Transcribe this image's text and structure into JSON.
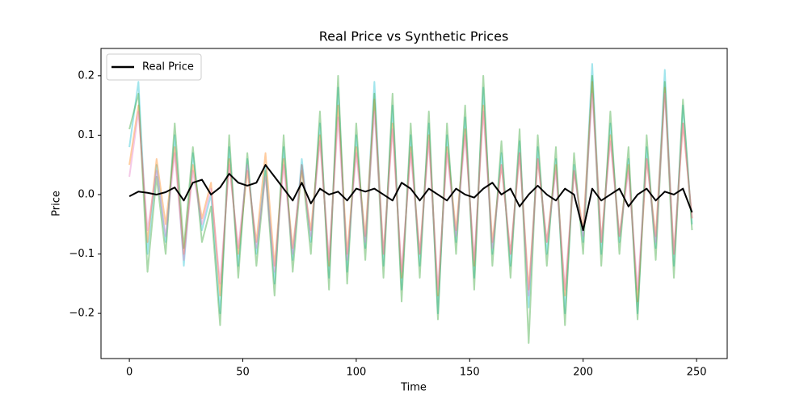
{
  "chart_data": {
    "type": "line",
    "title": "Real Price vs Synthetic Prices",
    "x_label": "Time",
    "y_label": "Price",
    "x": [
      0,
      4,
      8,
      12,
      16,
      20,
      24,
      28,
      32,
      36,
      40,
      44,
      48,
      52,
      56,
      60,
      64,
      68,
      72,
      76,
      80,
      84,
      88,
      92,
      96,
      100,
      104,
      108,
      112,
      116,
      120,
      124,
      128,
      132,
      136,
      140,
      144,
      148,
      152,
      156,
      160,
      164,
      168,
      172,
      176,
      180,
      184,
      188,
      192,
      196,
      200,
      204,
      208,
      212,
      216,
      220,
      224,
      228,
      232,
      236,
      240,
      244,
      248
    ],
    "series": [
      {
        "color": "#17becf",
        "values": [
          0.08,
          0.19,
          -0.1,
          0.05,
          -0.08,
          0.1,
          -0.12,
          0.07,
          -0.06,
          0.0,
          -0.2,
          0.08,
          -0.12,
          0.06,
          -0.1,
          0.05,
          -0.15,
          0.08,
          -0.11,
          0.06,
          -0.08,
          0.12,
          -0.14,
          0.18,
          -0.13,
          0.1,
          -0.09,
          0.19,
          -0.12,
          0.15,
          -0.16,
          0.1,
          -0.12,
          0.12,
          -0.2,
          0.1,
          -0.08,
          0.13,
          -0.14,
          0.18,
          -0.1,
          0.07,
          -0.12,
          0.09,
          -0.19,
          0.08,
          -0.1,
          0.06,
          -0.2,
          0.05,
          -0.08,
          0.22,
          -0.1,
          0.12,
          -0.08,
          0.06,
          -0.2,
          0.08,
          -0.09,
          0.21,
          -0.12,
          0.15,
          -0.05
        ]
      },
      {
        "color": "#ff7f0e",
        "values": [
          0.05,
          0.15,
          -0.08,
          0.06,
          -0.05,
          0.08,
          -0.1,
          0.05,
          -0.04,
          0.02,
          -0.17,
          0.06,
          -0.1,
          0.04,
          -0.08,
          0.07,
          -0.12,
          0.06,
          -0.09,
          0.04,
          -0.06,
          0.1,
          -0.12,
          0.15,
          -0.1,
          0.08,
          -0.07,
          0.16,
          -0.1,
          0.12,
          -0.14,
          0.08,
          -0.1,
          0.1,
          -0.17,
          0.08,
          -0.06,
          0.11,
          -0.12,
          0.15,
          -0.08,
          0.05,
          -0.1,
          0.07,
          -0.16,
          0.06,
          -0.08,
          0.05,
          -0.17,
          0.04,
          -0.06,
          0.19,
          -0.08,
          0.1,
          -0.07,
          0.05,
          -0.18,
          0.06,
          -0.07,
          0.18,
          -0.1,
          0.12,
          -0.04
        ]
      },
      {
        "color": "#2ca02c",
        "values": [
          0.11,
          0.17,
          -0.13,
          0.03,
          -0.1,
          0.12,
          -0.09,
          0.08,
          -0.08,
          -0.02,
          -0.22,
          0.1,
          -0.14,
          0.07,
          -0.12,
          0.04,
          -0.17,
          0.1,
          -0.13,
          0.05,
          -0.1,
          0.14,
          -0.16,
          0.2,
          -0.15,
          0.12,
          -0.11,
          0.17,
          -0.14,
          0.17,
          -0.18,
          0.12,
          -0.14,
          0.14,
          -0.21,
          0.12,
          -0.1,
          0.15,
          -0.16,
          0.2,
          -0.12,
          0.09,
          -0.14,
          0.11,
          -0.25,
          0.1,
          -0.12,
          0.08,
          -0.22,
          0.07,
          -0.1,
          0.2,
          -0.12,
          0.14,
          -0.1,
          0.08,
          -0.21,
          0.1,
          -0.11,
          0.19,
          -0.14,
          0.16,
          -0.06
        ]
      },
      {
        "color": "#e377c2",
        "values": [
          0.03,
          0.14,
          -0.06,
          0.04,
          -0.07,
          0.07,
          -0.11,
          0.04,
          -0.05,
          0.01,
          -0.15,
          0.05,
          -0.09,
          0.05,
          -0.09,
          0.03,
          -0.13,
          0.05,
          -0.1,
          0.05,
          -0.07,
          0.09,
          -0.11,
          0.13,
          -0.11,
          0.07,
          -0.08,
          0.14,
          -0.1,
          0.11,
          -0.13,
          0.07,
          -0.1,
          0.09,
          -0.16,
          0.07,
          -0.07,
          0.1,
          -0.11,
          0.14,
          -0.09,
          0.05,
          -0.1,
          0.07,
          -0.17,
          0.06,
          -0.08,
          0.04,
          -0.16,
          0.04,
          -0.07,
          0.17,
          -0.08,
          0.09,
          -0.07,
          0.04,
          -0.16,
          0.06,
          -0.08,
          0.17,
          -0.1,
          0.12,
          -0.04
        ]
      },
      {
        "name": "Real Price",
        "color": "#000000",
        "values": [
          -0.003,
          0.005,
          0.003,
          0.0,
          0.004,
          0.012,
          -0.01,
          0.02,
          0.025,
          0.0,
          0.012,
          0.035,
          0.02,
          0.015,
          0.02,
          0.05,
          0.03,
          0.01,
          -0.01,
          0.02,
          -0.015,
          0.01,
          0.0,
          0.005,
          -0.01,
          0.01,
          0.005,
          0.01,
          0.0,
          -0.01,
          0.02,
          0.01,
          -0.01,
          0.01,
          0.0,
          -0.01,
          0.01,
          0.0,
          -0.005,
          0.01,
          0.02,
          0.0,
          0.01,
          -0.02,
          0.0,
          0.015,
          0.0,
          -0.01,
          0.01,
          0.0,
          -0.06,
          0.01,
          -0.01,
          0.0,
          0.01,
          -0.02,
          0.0,
          0.01,
          -0.01,
          0.005,
          0.0,
          0.01,
          -0.03
        ]
      }
    ],
    "xlim": [
      -12.5,
      263.5
    ],
    "ylim": [
      -0.276,
      0.246
    ],
    "xticks": [
      0,
      50,
      100,
      150,
      200,
      250
    ],
    "yticks": [
      {
        "value": -0.2,
        "label": "−0.2"
      },
      {
        "value": -0.1,
        "label": "−0.1"
      },
      {
        "value": 0,
        "label": "0.0"
      },
      0.1,
      0.2
    ],
    "legend": "upper left"
  }
}
